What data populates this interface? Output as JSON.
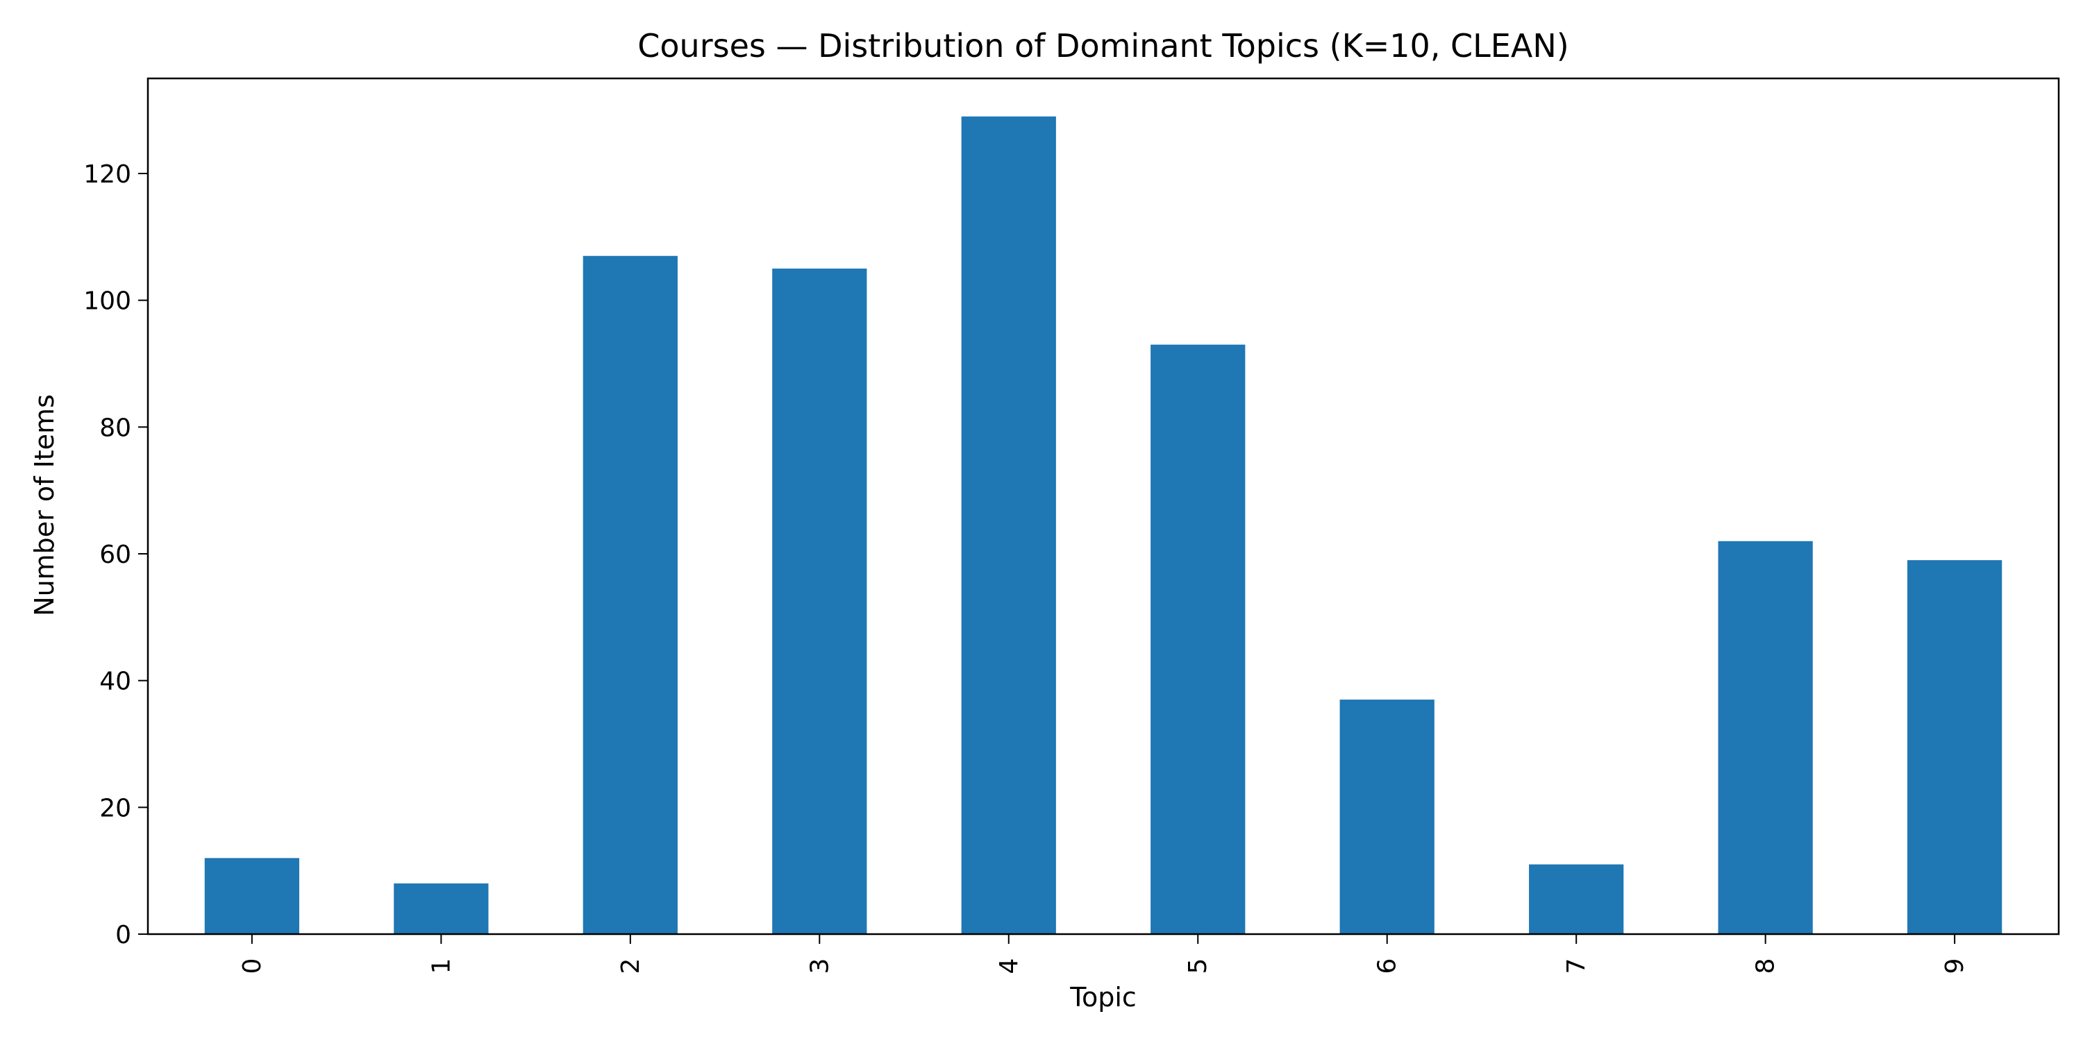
{
  "chart_data": {
    "type": "bar",
    "title": "Courses — Distribution of Dominant Topics (K=10, CLEAN)",
    "xlabel": "Topic",
    "ylabel": "Number of Items",
    "categories": [
      "0",
      "1",
      "2",
      "3",
      "4",
      "5",
      "6",
      "7",
      "8",
      "9"
    ],
    "values": [
      12,
      8,
      107,
      105,
      129,
      93,
      37,
      11,
      62,
      59
    ],
    "ylim": [
      0,
      135
    ],
    "yticks": [
      0,
      20,
      40,
      60,
      80,
      100,
      120
    ],
    "grid": false,
    "legend": "none",
    "bar_color": "#1f77b4"
  }
}
